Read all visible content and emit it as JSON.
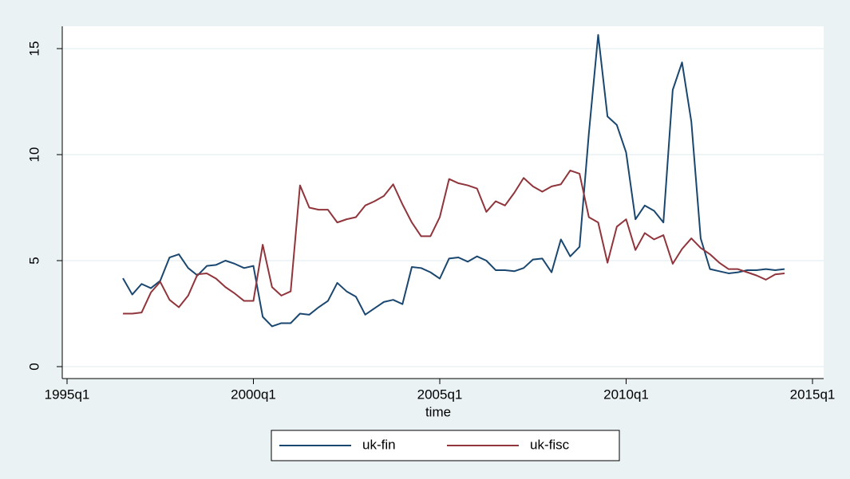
{
  "chart_data": {
    "type": "line",
    "x_label": "time",
    "x": [
      146,
      147,
      148,
      149,
      150,
      151,
      152,
      153,
      154,
      155,
      156,
      157,
      158,
      159,
      160,
      161,
      162,
      163,
      164,
      165,
      166,
      167,
      168,
      169,
      170,
      171,
      172,
      173,
      174,
      175,
      176,
      177,
      178,
      179,
      180,
      181,
      182,
      183,
      184,
      185,
      186,
      187,
      188,
      189,
      190,
      191,
      192,
      193,
      194,
      195,
      196,
      197,
      198,
      199,
      200,
      201,
      202,
      203,
      204,
      205,
      206,
      207,
      208,
      209,
      210,
      211,
      212,
      213,
      214,
      215,
      216,
      217
    ],
    "series": [
      {
        "name": "uk-fin",
        "color": "#1a476f",
        "values": [
          4.17,
          3.4,
          3.9,
          3.7,
          4.05,
          5.15,
          5.3,
          4.65,
          4.3,
          4.75,
          4.8,
          5.0,
          4.85,
          4.65,
          4.75,
          2.35,
          1.9,
          2.05,
          2.05,
          2.5,
          2.45,
          2.8,
          3.1,
          3.95,
          3.55,
          3.3,
          2.45,
          2.75,
          3.05,
          3.15,
          2.95,
          4.7,
          4.65,
          4.45,
          4.15,
          5.1,
          5.15,
          4.95,
          5.2,
          5.0,
          4.55,
          4.55,
          4.5,
          4.65,
          5.05,
          5.1,
          4.45,
          6.0,
          5.2,
          5.65,
          11.0,
          15.65,
          11.8,
          11.4,
          10.1,
          6.95,
          7.6,
          7.35,
          6.8,
          13.05,
          14.35,
          11.55,
          6.05,
          4.6,
          4.5,
          4.4,
          4.45,
          4.55,
          4.55,
          4.6,
          4.55,
          4.6
        ]
      },
      {
        "name": "uk-fisc",
        "color": "#90353b",
        "values": [
          2.5,
          2.5,
          2.55,
          3.5,
          4.0,
          3.15,
          2.8,
          3.35,
          4.35,
          4.4,
          4.15,
          3.75,
          3.45,
          3.1,
          3.1,
          5.75,
          3.75,
          3.35,
          3.55,
          8.55,
          7.5,
          7.4,
          7.4,
          6.8,
          6.95,
          7.05,
          7.6,
          7.8,
          8.05,
          8.6,
          7.65,
          6.8,
          6.15,
          6.15,
          7.05,
          8.85,
          8.65,
          8.55,
          8.4,
          7.3,
          7.8,
          7.6,
          8.2,
          8.9,
          8.5,
          8.25,
          8.5,
          8.6,
          9.25,
          9.1,
          7.05,
          6.8,
          4.9,
          6.6,
          6.95,
          5.5,
          6.3,
          6.0,
          6.2,
          4.85,
          5.55,
          6.05,
          5.6,
          5.3,
          4.9,
          4.6,
          4.6,
          4.45,
          4.3,
          4.1,
          4.35,
          4.4
        ]
      }
    ],
    "xlim": [
      140,
      220
    ],
    "xticks": [
      {
        "value": 140,
        "label": "1995q1"
      },
      {
        "value": 160,
        "label": "2000q1"
      },
      {
        "value": 180,
        "label": "2005q1"
      },
      {
        "value": 200,
        "label": "2010q1"
      },
      {
        "value": 220,
        "label": "2015q1"
      }
    ],
    "ylim": [
      0,
      15
    ],
    "yticks": [
      0,
      5,
      10,
      15
    ],
    "grid": true,
    "legend": "bottom"
  }
}
